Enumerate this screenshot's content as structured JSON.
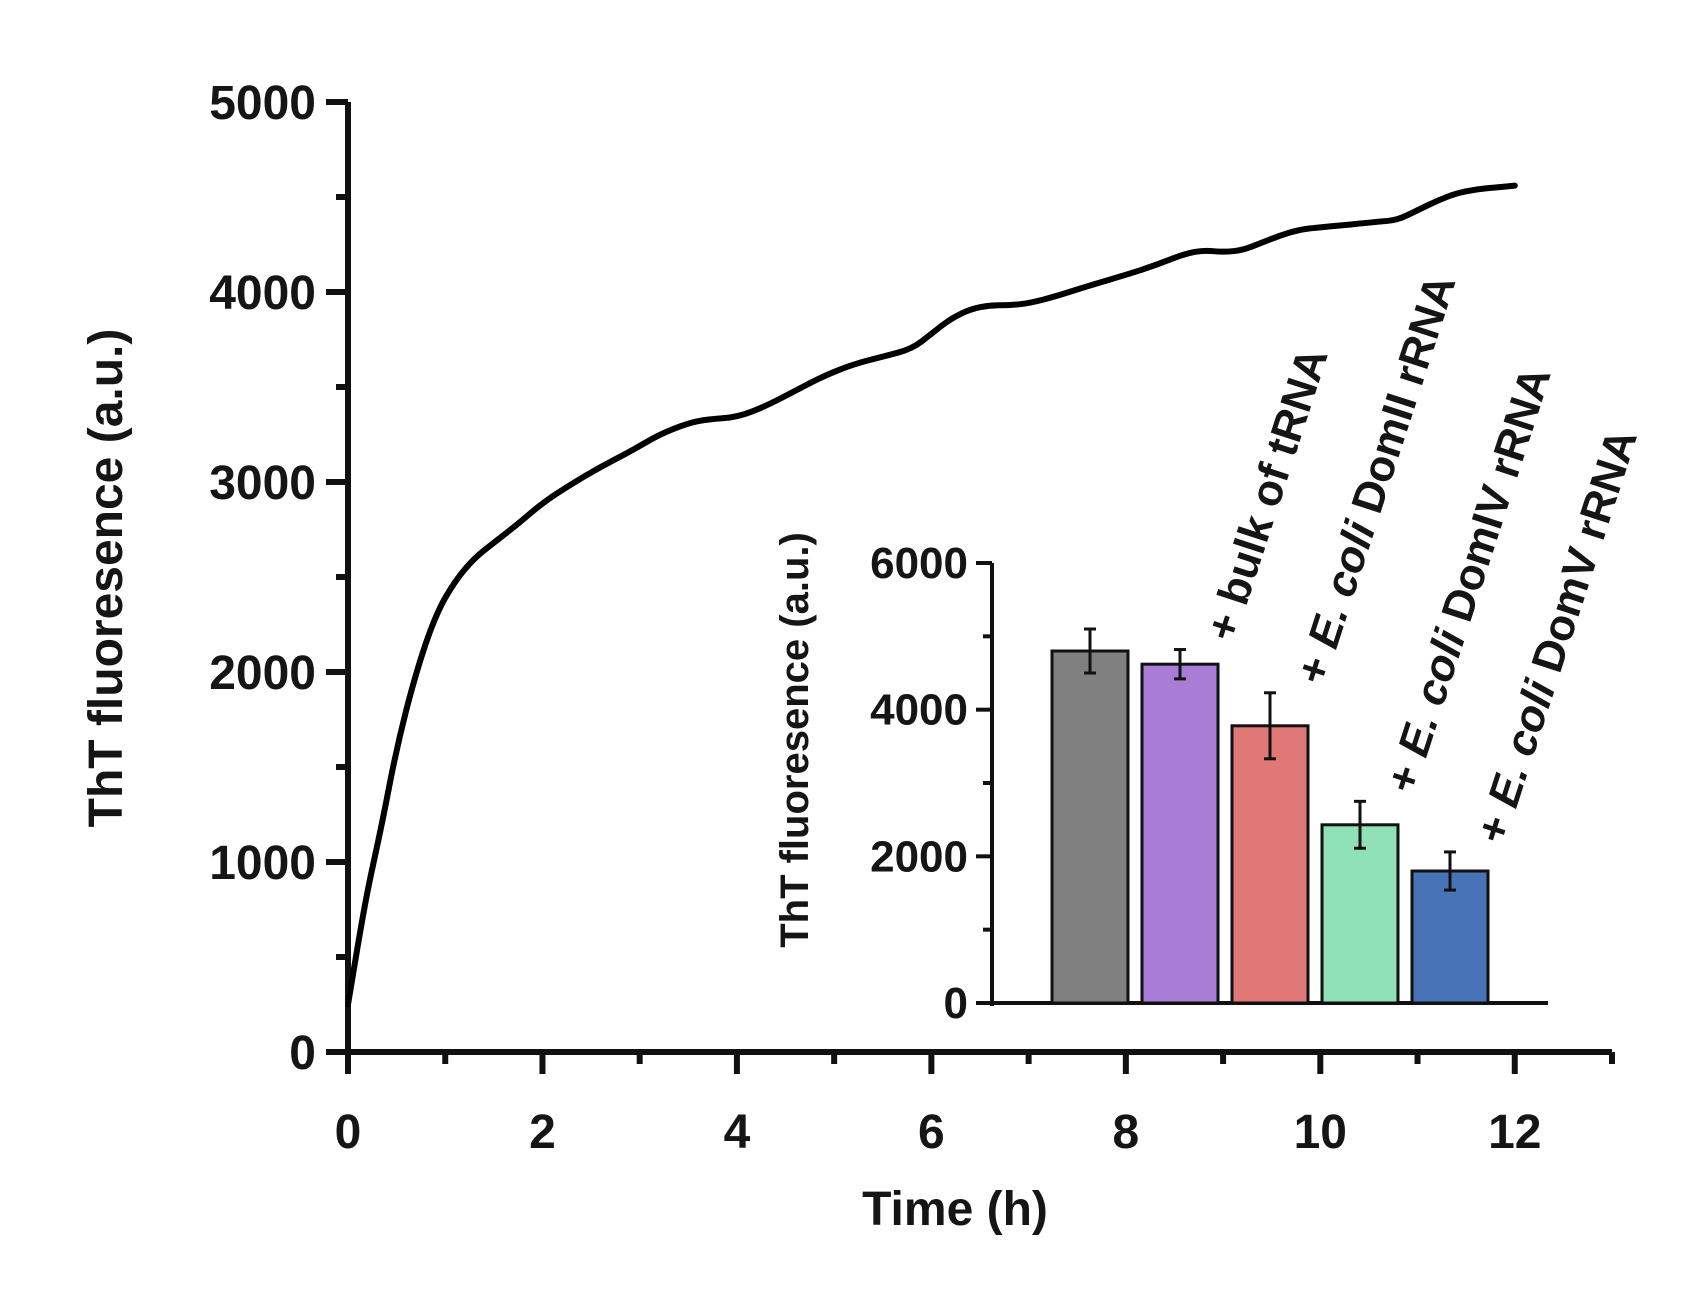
{
  "chart_data": [
    {
      "type": "line",
      "xlabel": "Time (h)",
      "ylabel": "ThT fluoresence (a.u.)",
      "xlim": [
        0,
        13
      ],
      "ylim": [
        0,
        5000
      ],
      "xticks": [
        0,
        2,
        4,
        6,
        8,
        10,
        12
      ],
      "yticks": [
        0,
        1000,
        2000,
        3000,
        4000,
        5000
      ],
      "series": [
        {
          "name": "ThT fluorescence",
          "color": "#000000",
          "x": [
            0,
            0.1,
            0.2,
            0.35,
            0.5,
            0.7,
            0.9,
            1.1,
            1.3,
            1.5,
            1.75,
            2,
            2.3,
            2.6,
            2.9,
            3.2,
            3.5,
            3.7,
            4,
            4.3,
            4.6,
            4.9,
            5.2,
            5.5,
            5.8,
            6,
            6.2,
            6.4,
            6.6,
            6.8,
            7,
            7.3,
            7.6,
            8,
            8.3,
            8.6,
            8.8,
            9,
            9.2,
            9.4,
            9.6,
            9.8,
            10,
            10.2,
            10.4,
            10.6,
            10.8,
            11,
            11.2,
            11.4,
            11.6,
            11.8,
            12
          ],
          "values": [
            250,
            560,
            850,
            1200,
            1600,
            2000,
            2300,
            2480,
            2600,
            2680,
            2780,
            2890,
            2990,
            3080,
            3160,
            3250,
            3310,
            3330,
            3340,
            3400,
            3480,
            3560,
            3620,
            3660,
            3700,
            3780,
            3860,
            3910,
            3930,
            3930,
            3940,
            3980,
            4030,
            4090,
            4140,
            4200,
            4220,
            4210,
            4220,
            4260,
            4300,
            4330,
            4340,
            4350,
            4360,
            4370,
            4380,
            4430,
            4480,
            4520,
            4540,
            4550,
            4560
          ]
        }
      ]
    },
    {
      "type": "bar",
      "xlabel": "",
      "ylabel": "ThT fluoresence (a.u.)",
      "ylim": [
        0,
        6000
      ],
      "yticks": [
        0,
        2000,
        4000,
        6000
      ],
      "categories": [
        "",
        "+ bulk of tRNA",
        "+ E. coli DomII rRNA",
        "+ E. coli DomIV rRNA",
        "+ E. coli DomV rRNA"
      ],
      "label_parts": [
        [],
        [
          {
            "t": "+ bulk of tRNA",
            "i": false
          }
        ],
        [
          {
            "t": "+ ",
            "i": false
          },
          {
            "t": "E. coli",
            "i": true
          },
          {
            "t": " DomII rRNA",
            "i": false
          }
        ],
        [
          {
            "t": "+ ",
            "i": false
          },
          {
            "t": "E. coli",
            "i": true
          },
          {
            "t": " DomIV rRNA",
            "i": false
          }
        ],
        [
          {
            "t": "+ ",
            "i": false
          },
          {
            "t": "E. coli",
            "i": true
          },
          {
            "t": " DomV rRNA",
            "i": false
          }
        ]
      ],
      "values": [
        4800,
        4620,
        3780,
        2430,
        1800
      ],
      "errors": [
        300,
        200,
        450,
        320,
        260
      ],
      "colors": [
        "#808080",
        "#a97dd6",
        "#e07878",
        "#8fe0b5",
        "#4873b6"
      ]
    }
  ]
}
